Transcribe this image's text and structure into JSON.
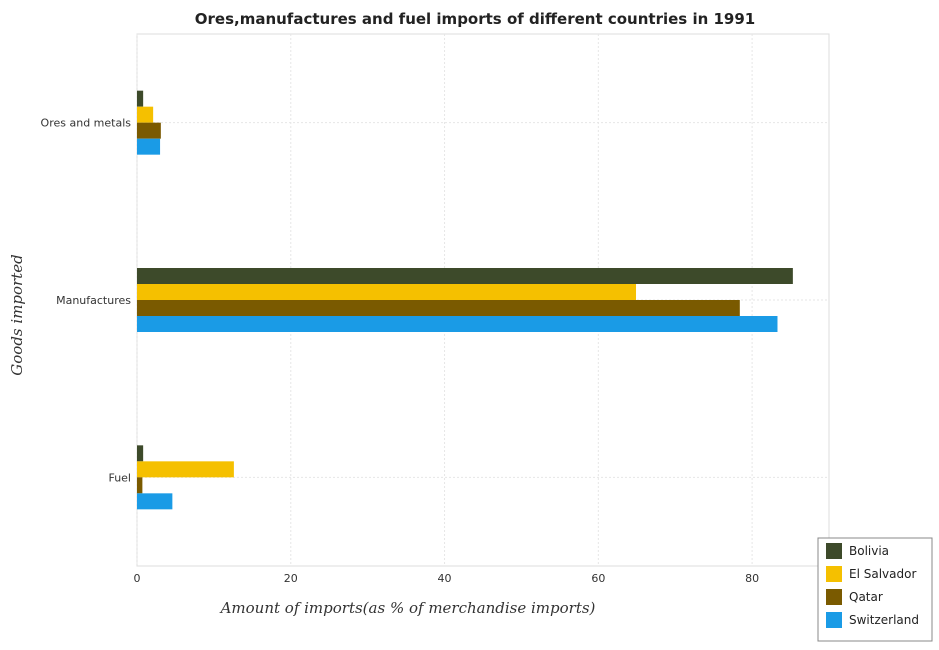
{
  "chart_data": {
    "type": "bar",
    "orientation": "horizontal",
    "title": "Ores,manufactures and fuel imports of different countries in 1991",
    "xlabel": "Amount of imports(as % of merchandise imports)",
    "ylabel": "Goods imported",
    "categories": [
      "Ores and metals",
      "Manufactures",
      "Fuel"
    ],
    "xlim": [
      0,
      90
    ],
    "xticks": [
      0,
      20,
      40,
      60,
      80
    ],
    "grid": true,
    "legend_position": "bottom-right",
    "series": [
      {
        "name": "Bolivia",
        "color": "#3d4a2a",
        "values": [
          0.8,
          85.3,
          0.8
        ]
      },
      {
        "name": "El Salvador",
        "color": "#f5c000",
        "values": [
          2.1,
          64.9,
          12.6
        ]
      },
      {
        "name": "Qatar",
        "color": "#7a5a00",
        "values": [
          3.1,
          78.4,
          0.7
        ]
      },
      {
        "name": "Switzerland",
        "color": "#1a9be6",
        "values": [
          3.0,
          83.3,
          4.6
        ]
      }
    ]
  }
}
